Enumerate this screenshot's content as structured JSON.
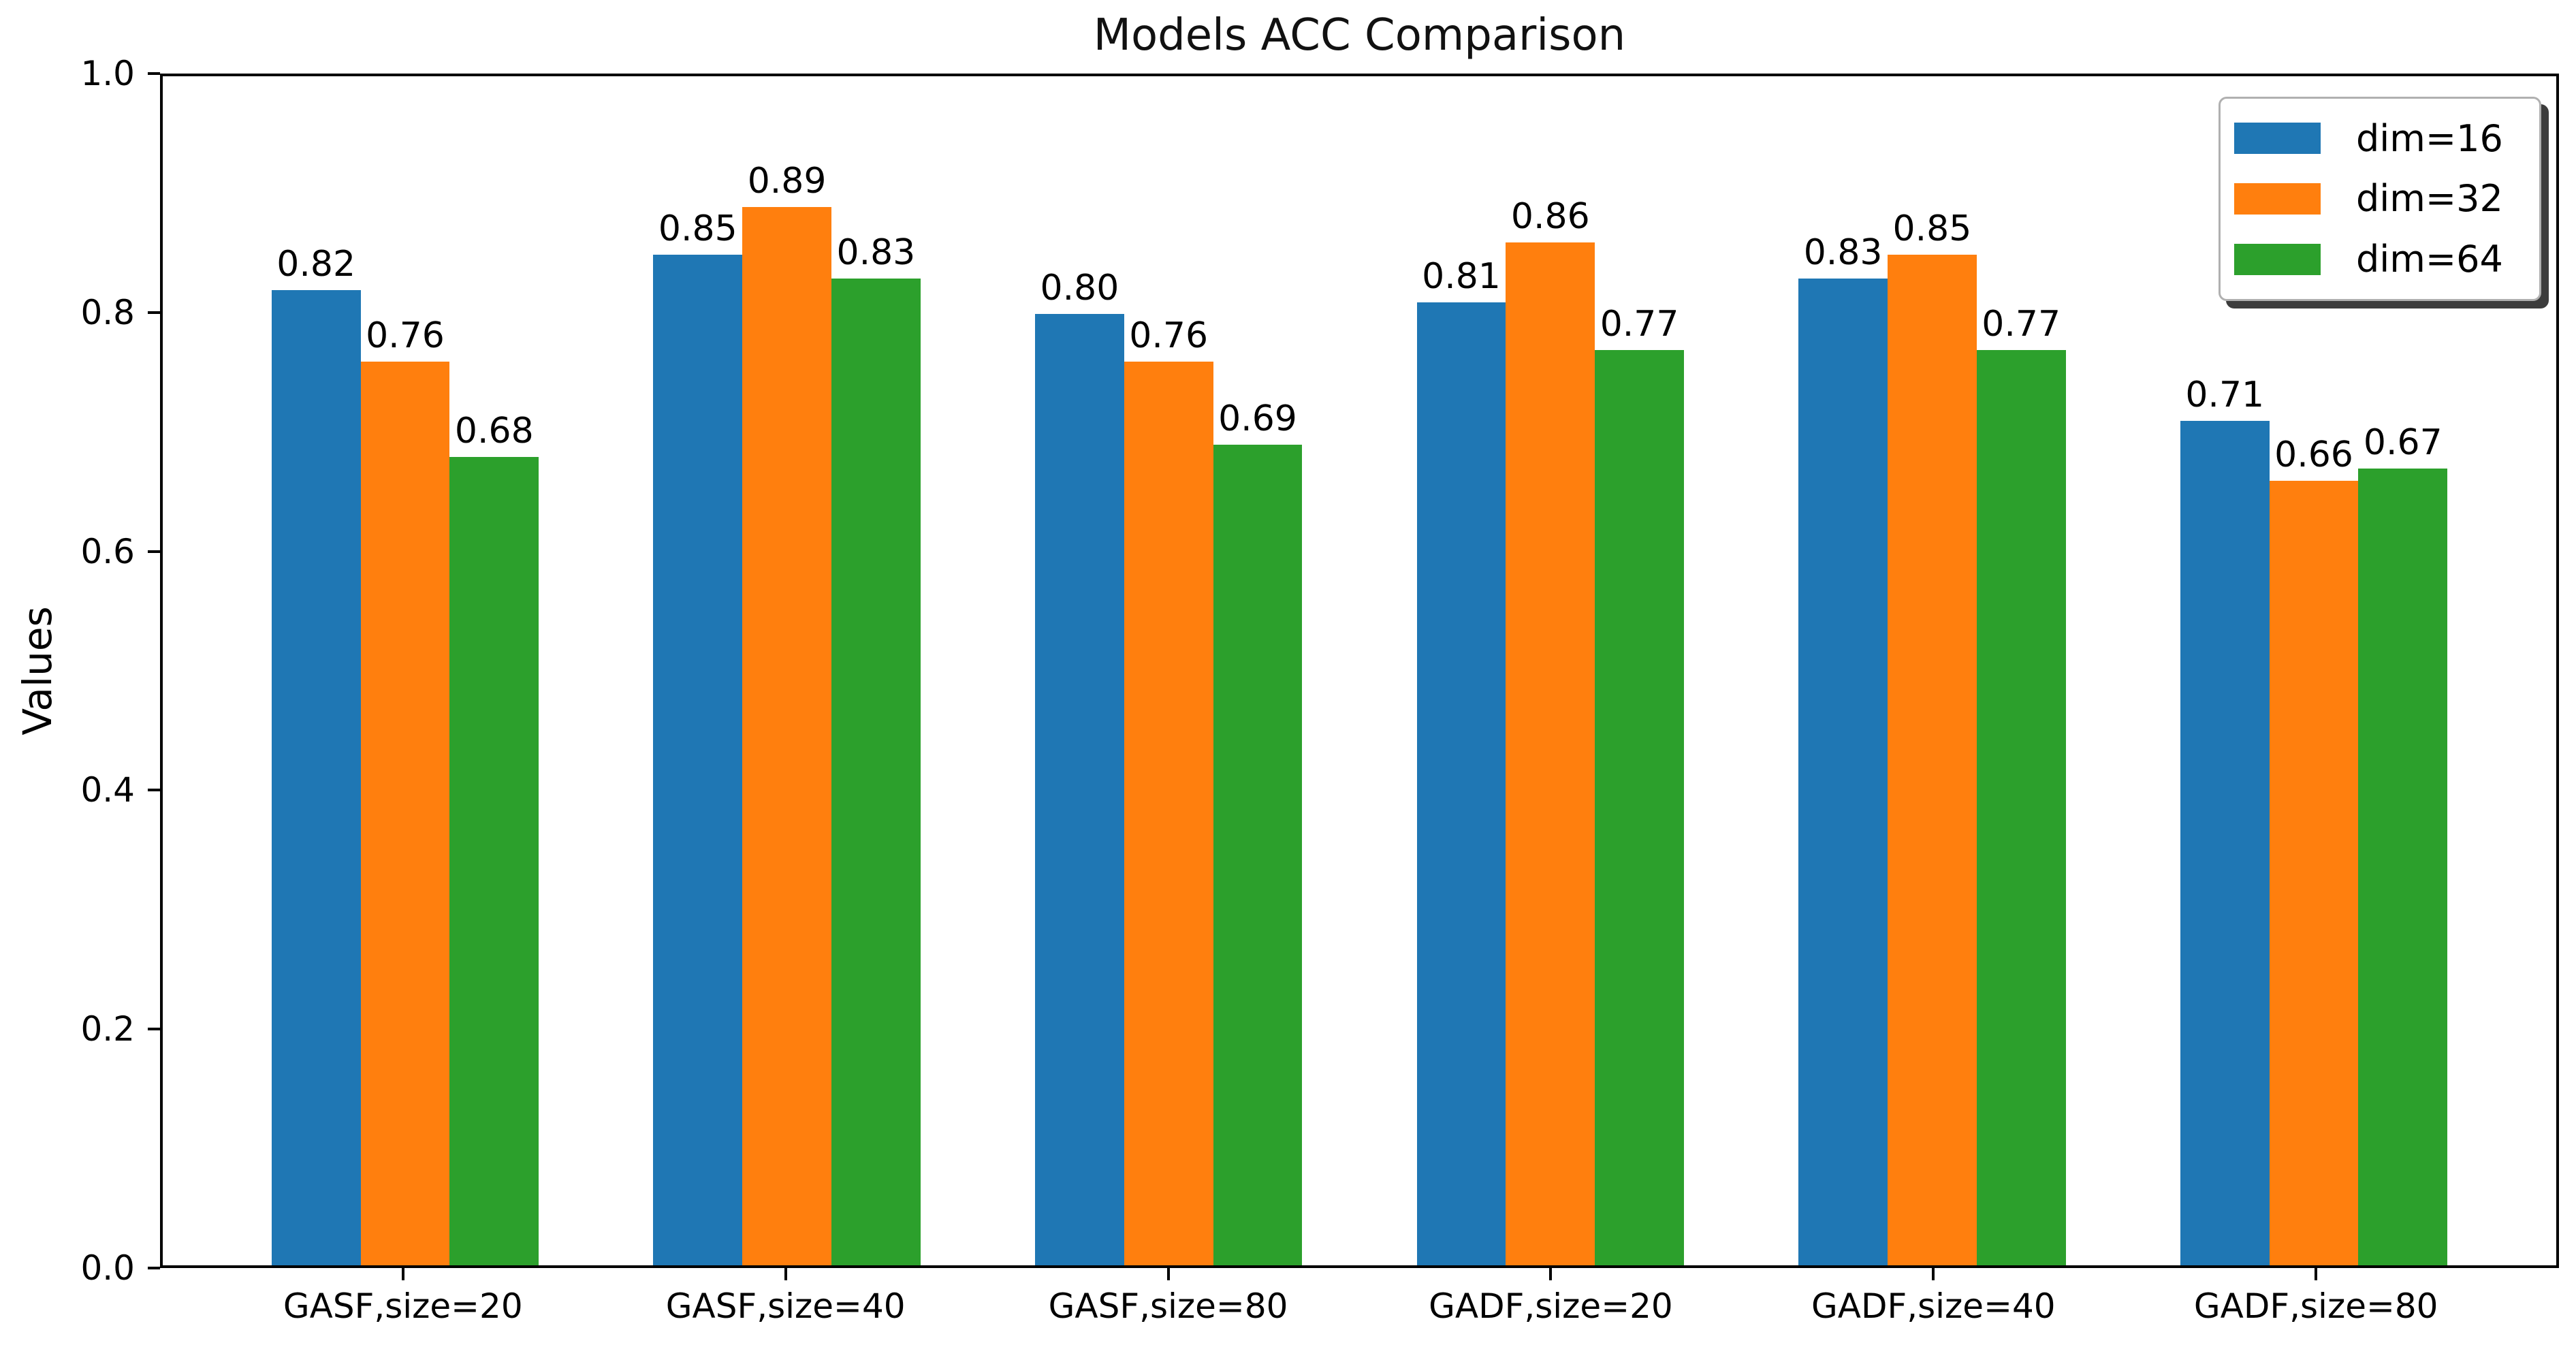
{
  "chart_data": {
    "type": "bar",
    "title": "Models ACC Comparison",
    "ylabel": "Values",
    "xlabel": "",
    "categories": [
      "GASF,size=20",
      "GASF,size=40",
      "GASF,size=80",
      "GADF,size=20",
      "GADF,size=40",
      "GADF,size=80"
    ],
    "series": [
      {
        "name": "dim=16",
        "color": "#1f77b4",
        "values": [
          0.82,
          0.85,
          0.8,
          0.81,
          0.83,
          0.71
        ]
      },
      {
        "name": "dim=32",
        "color": "#ff7f0e",
        "values": [
          0.76,
          0.89,
          0.76,
          0.86,
          0.85,
          0.66
        ]
      },
      {
        "name": "dim=64",
        "color": "#2ca02c",
        "values": [
          0.68,
          0.83,
          0.69,
          0.77,
          0.77,
          0.67
        ]
      }
    ],
    "bar_value_labels": [
      [
        "0.82",
        "0.85",
        "0.80",
        "0.81",
        "0.83",
        "0.71"
      ],
      [
        "0.76",
        "0.89",
        "0.76",
        "0.86",
        "0.85",
        "0.66"
      ],
      [
        "0.68",
        "0.83",
        "0.69",
        "0.77",
        "0.77",
        "0.67"
      ]
    ],
    "ylim": [
      0.0,
      1.0
    ],
    "yticks": [
      "0.0",
      "0.2",
      "0.4",
      "0.6",
      "0.8",
      "1.0"
    ],
    "grid": "off",
    "legend_position": "upper-right",
    "axis_color": "#000000",
    "text_color": "#000000",
    "background": "#ffffff"
  }
}
